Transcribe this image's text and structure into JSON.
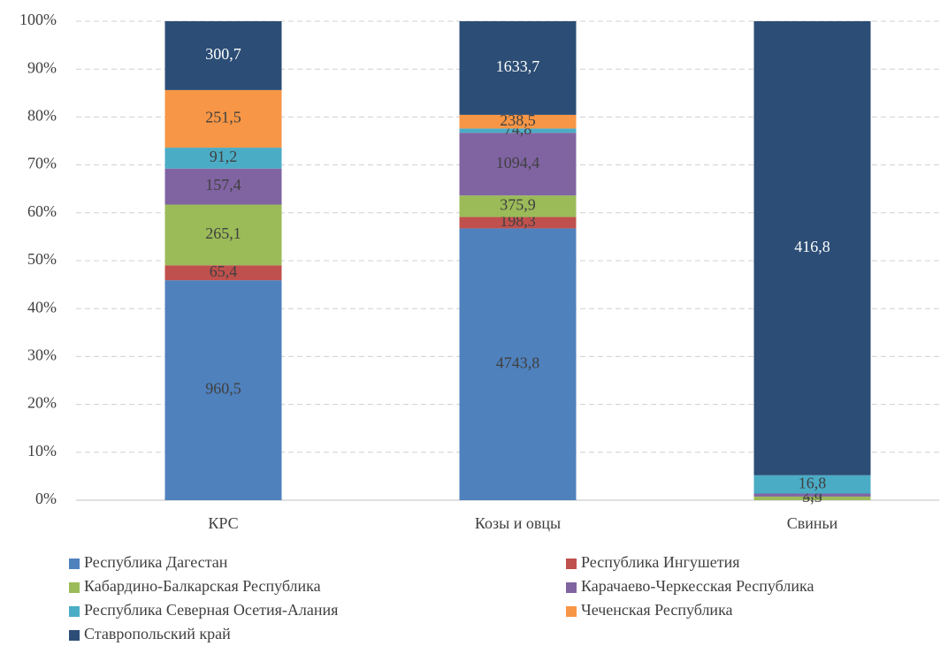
{
  "chart_data": {
    "type": "bar",
    "stack": "percent",
    "categories": [
      "КРС",
      "Козы и овцы",
      "Свиньи"
    ],
    "series": [
      {
        "name": "Республика Дагестан",
        "color": "#4f81bd",
        "values": [
          960.5,
          4743.8,
          null
        ],
        "value_labels": [
          "960,5",
          "4743,8",
          null
        ]
      },
      {
        "name": "Республика Ингушетия",
        "color": "#c0504d",
        "values": [
          65.4,
          198.3,
          null
        ],
        "value_labels": [
          "65,4",
          "198,3",
          null
        ]
      },
      {
        "name": "Кабардино-Балкарская Республика",
        "color": "#9bbb59",
        "values": [
          265.1,
          375.9,
          3.3
        ],
        "value_labels": [
          "265,1",
          "375,9",
          "3,3"
        ]
      },
      {
        "name": "Карачаево-Черкесская Республика",
        "color": "#8064a2",
        "values": [
          157.4,
          1094.4,
          2.8
        ],
        "value_labels": [
          "157,4",
          "1094,4",
          "2,8"
        ]
      },
      {
        "name": "Республика Северная Осетия-Алания",
        "color": "#4bacc6",
        "values": [
          91.2,
          74.8,
          16.8
        ],
        "value_labels": [
          "91,2",
          "74,8",
          "16,8"
        ]
      },
      {
        "name": "Чеченская Республика",
        "color": "#f79646",
        "values": [
          251.5,
          238.5,
          null
        ],
        "value_labels": [
          "251,5",
          "238,5",
          null
        ]
      },
      {
        "name": "Ставропольский край",
        "color": "#2c4d75",
        "values": [
          300.7,
          1633.7,
          416.8
        ],
        "value_labels": [
          "300,7",
          "1633,7",
          "416,8"
        ]
      }
    ],
    "ylim": [
      0,
      100
    ],
    "yticks": [
      {
        "value": 0,
        "label": "0%"
      },
      {
        "value": 10,
        "label": "10%"
      },
      {
        "value": 20,
        "label": "20%"
      },
      {
        "value": 30,
        "label": "30%"
      },
      {
        "value": 40,
        "label": "40%"
      },
      {
        "value": 50,
        "label": "50%"
      },
      {
        "value": 60,
        "label": "60%"
      },
      {
        "value": 70,
        "label": "70%"
      },
      {
        "value": 80,
        "label": "80%"
      },
      {
        "value": 90,
        "label": "90%"
      },
      {
        "value": 100,
        "label": "100%"
      }
    ],
    "grid": true,
    "legend": "bottom"
  }
}
